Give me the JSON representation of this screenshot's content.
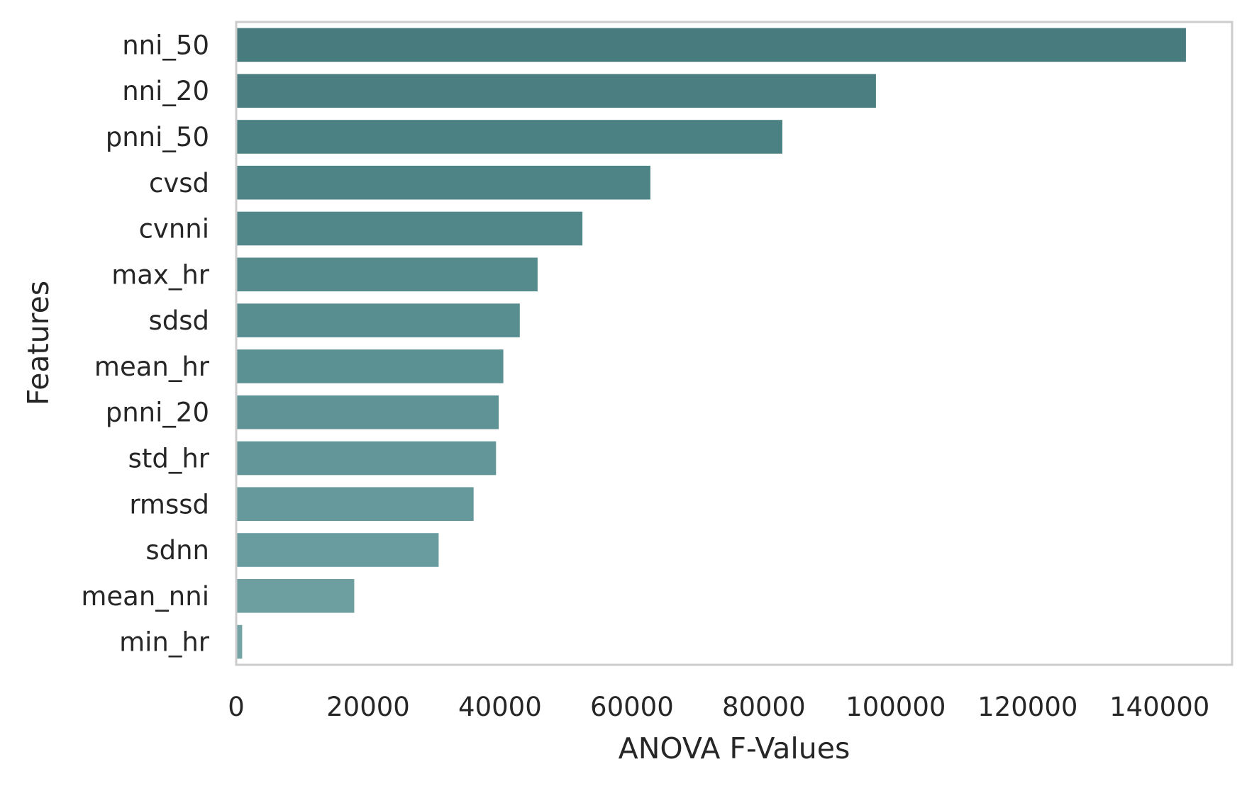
{
  "chart_data": {
    "type": "bar",
    "orientation": "horizontal",
    "title": "",
    "xlabel": "ANOVA F-Values",
    "ylabel": "Features",
    "xlim": [
      0,
      151000
    ],
    "xticks": [
      0,
      20000,
      40000,
      60000,
      80000,
      100000,
      120000,
      140000
    ],
    "grid": false,
    "categories": [
      "nni_50",
      "nni_20",
      "pnni_50",
      "cvsd",
      "cvnni",
      "max_hr",
      "sdsd",
      "mean_hr",
      "pnni_20",
      "std_hr",
      "rmssd",
      "sdnn",
      "mean_nni",
      "min_hr"
    ],
    "values": [
      144000,
      97000,
      82800,
      62800,
      52500,
      45700,
      43000,
      40500,
      39800,
      39400,
      36000,
      30700,
      17900,
      900
    ],
    "colors": [
      "#487b7d",
      "#4a7e80",
      "#4c8183",
      "#4e8486",
      "#518789",
      "#558b8d",
      "#598e90",
      "#5c9193",
      "#5f9396",
      "#629699",
      "#65999b",
      "#699c9e",
      "#6d9fa0",
      "#74a4a6"
    ]
  }
}
